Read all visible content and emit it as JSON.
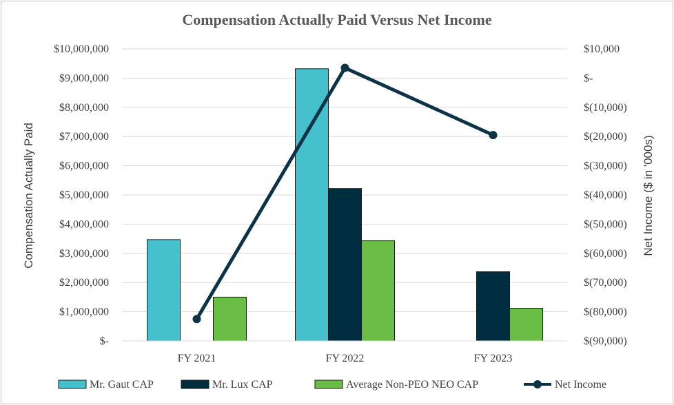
{
  "chart_data": {
    "type": "bar",
    "title": "Compensation Actually Paid Versus Net Income",
    "categories": [
      "FY 2021",
      "FY 2022",
      "FY 2023"
    ],
    "ylabel": "Compensation Actually Paid",
    "y2label": "Net Income ($ in '000s)",
    "ylim": [
      0,
      10000000
    ],
    "y2lim": [
      -90000,
      10000
    ],
    "y_ticks": [
      0,
      1000000,
      2000000,
      3000000,
      4000000,
      5000000,
      6000000,
      7000000,
      8000000,
      9000000,
      10000000
    ],
    "y_tick_labels": [
      "$-",
      "$1,000,000",
      "$2,000,000",
      "$3,000,000",
      "$4,000,000",
      "$5,000,000",
      "$6,000,000",
      "$7,000,000",
      "$8,000,000",
      "$9,000,000",
      "$10,000,000"
    ],
    "y2_ticks": [
      -90000,
      -80000,
      -70000,
      -60000,
      -50000,
      -40000,
      -30000,
      -20000,
      -10000,
      0,
      10000
    ],
    "y2_tick_labels": [
      "$(90,000)",
      "$(80,000)",
      "$(70,000)",
      "$(60,000)",
      "$(50,000)",
      "$(40,000)",
      "$(30,000)",
      "$(20,000)",
      "$(10,000)",
      "$-",
      "$10,000"
    ],
    "grid": true,
    "legend_position": "bottom",
    "series": [
      {
        "name": "Mr. Gaut CAP",
        "kind": "bar",
        "axis": "left",
        "color": "#45c1cd",
        "values": [
          3470000,
          9320000,
          0
        ]
      },
      {
        "name": "Mr. Lux CAP",
        "kind": "bar",
        "axis": "left",
        "color": "#002d40",
        "values": [
          0,
          5220000,
          2370000
        ]
      },
      {
        "name": "Average Non-PEO NEO CAP",
        "kind": "bar",
        "axis": "left",
        "color": "#6abd45",
        "values": [
          1500000,
          3430000,
          1120000
        ]
      },
      {
        "name": "Net Income",
        "kind": "line",
        "axis": "right",
        "color": "#0d3347",
        "values": [
          -82500,
          3500,
          -19500
        ]
      }
    ]
  }
}
